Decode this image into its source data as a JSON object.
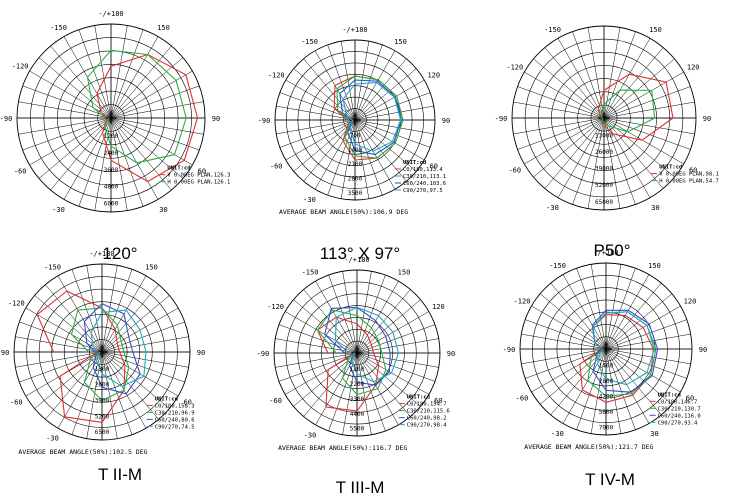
{
  "diagrams": [
    {
      "caption": "120°",
      "angle_labels": {
        "top": "-/+180",
        "r150": "150",
        "l150": "-150",
        "r120": "",
        "l120": "-120",
        "r90": "90",
        "l90": "-90",
        "r60": "60",
        "l60": "-60",
        "r30": "30",
        "l30": "-30",
        "zero": "0"
      },
      "radial_labels": [
        "1200",
        "2400",
        "3600",
        "4800",
        "6000"
      ],
      "unit_label": "UNIT:cd",
      "legend": [
        {
          "text": "V 0.00EG PLAN,126.3",
          "color": "#e03030"
        },
        {
          "text": "H 0.00EG PLAN,126.1",
          "color": "#27b040"
        }
      ],
      "beam_text": "",
      "curves": [
        {
          "color": "#e03030",
          "values": [
            0.02,
            0.06,
            0.18,
            0.45,
            0.78,
            0.9,
            0.92,
            0.92,
            0.78,
            0.55,
            0.3,
            0.12,
            0.04,
            0.02
          ]
        },
        {
          "color": "#27b040",
          "values": [
            0.02,
            0.05,
            0.12,
            0.3,
            0.55,
            0.78,
            0.8,
            0.8,
            0.78,
            0.72,
            0.5,
            0.22,
            0.06,
            0.02
          ]
        }
      ]
    },
    {
      "caption": "113° X 97°",
      "angle_labels": {
        "top": "-/+180",
        "r150": "150",
        "l150": "-150",
        "r120": "120",
        "l120": "-120",
        "r90": "90",
        "l90": "-90",
        "r60": "60",
        "l60": "-60",
        "r30": "",
        "l30": "-30",
        "zero": "0"
      },
      "radial_labels": [
        "700",
        "1400",
        "2100",
        "2800",
        "3500"
      ],
      "unit_label": "UNIT:cd",
      "legend": [
        {
          "text": "C0/180,113.4",
          "color": "#e03030"
        },
        {
          "text": "C30/210,113.1",
          "color": "#27b040"
        },
        {
          "text": "C60/240,103.6",
          "color": "#3050d0"
        },
        {
          "text": "C90/270,97.5",
          "color": "#20a8c0"
        }
      ],
      "beam_text": "AVERAGE BEAM ANGLE(50%):106.9 DEG",
      "curves": [
        {
          "color": "#e03030",
          "values": [
            0.02,
            0.1,
            0.3,
            0.5,
            0.55,
            0.58,
            0.6,
            0.6,
            0.58,
            0.55,
            0.5,
            0.3,
            0.1,
            0.02
          ]
        },
        {
          "color": "#27b040",
          "values": [
            0.02,
            0.08,
            0.25,
            0.45,
            0.55,
            0.58,
            0.6,
            0.6,
            0.58,
            0.55,
            0.45,
            0.25,
            0.08,
            0.02
          ]
        },
        {
          "color": "#3050d0",
          "values": [
            0.02,
            0.05,
            0.18,
            0.38,
            0.5,
            0.56,
            0.58,
            0.58,
            0.56,
            0.5,
            0.38,
            0.18,
            0.05,
            0.02
          ]
        },
        {
          "color": "#20a8c0",
          "values": [
            0.02,
            0.04,
            0.12,
            0.3,
            0.45,
            0.54,
            0.57,
            0.57,
            0.54,
            0.45,
            0.3,
            0.12,
            0.04,
            0.02
          ]
        }
      ]
    },
    {
      "caption": "P50°",
      "angle_labels": {
        "top": "",
        "r150": "150",
        "l150": "-150",
        "r120": "120",
        "l120": "-120",
        "r90": "90",
        "l90": "-90",
        "r60": "60",
        "l60": "-60",
        "r30": "30",
        "l30": "-30",
        "zero": ""
      },
      "radial_labels": [
        "13000",
        "26000",
        "39000",
        "52000",
        "65000"
      ],
      "unit_label": "UNIT:cd",
      "legend": [
        {
          "text": "V 0.00EG PLAN,98.1",
          "color": "#e03030"
        },
        {
          "text": "H 0.00EG PLAN,54.7",
          "color": "#27b040"
        }
      ],
      "beam_text": "",
      "curves": [
        {
          "color": "#e03030",
          "values": [
            0.01,
            0.02,
            0.04,
            0.08,
            0.2,
            0.48,
            0.75,
            0.78,
            0.55,
            0.3,
            0.12,
            0.05,
            0.02,
            0.01
          ]
        },
        {
          "color": "#27b040",
          "values": [
            0.01,
            0.02,
            0.03,
            0.05,
            0.1,
            0.3,
            0.55,
            0.6,
            0.35,
            0.15,
            0.06,
            0.03,
            0.02,
            0.01
          ]
        }
      ]
    },
    {
      "caption": "T II-M",
      "angle_labels": {
        "top": "-/+180",
        "r150": "150",
        "l150": "-150",
        "r120": "",
        "l120": "-120",
        "r90": "90",
        "l90": "-90",
        "r60": "60",
        "l60": "-60",
        "r30": "",
        "l30": "-30",
        "zero": "0"
      },
      "radial_labels": [
        "1300",
        "2600",
        "3900",
        "5200",
        "6500"
      ],
      "unit_label": "UNIT:cd",
      "legend": [
        {
          "text": "C0/180,158.3",
          "color": "#e03030"
        },
        {
          "text": "C30/210,96.9",
          "color": "#27b040"
        },
        {
          "text": "C60/240,80.6",
          "color": "#3050d0"
        },
        {
          "text": "C90/270,74.5",
          "color": "#20a8c0"
        }
      ],
      "beam_text": "AVERAGE BEAM ANGLE(50%):102.5 DEG",
      "curves": [
        {
          "color": "#e03030",
          "values": [
            0.05,
            0.55,
            0.85,
            0.8,
            0.5,
            0.3,
            0.2,
            0.2,
            0.3,
            0.5,
            0.8,
            0.85,
            0.55,
            0.05
          ]
        },
        {
          "color": "#27b040",
          "values": [
            0.03,
            0.15,
            0.4,
            0.55,
            0.5,
            0.35,
            0.25,
            0.25,
            0.35,
            0.5,
            0.55,
            0.4,
            0.15,
            0.03
          ]
        },
        {
          "color": "#3050d0",
          "values": [
            0.02,
            0.08,
            0.2,
            0.4,
            0.55,
            0.5,
            0.35,
            0.35,
            0.5,
            0.55,
            0.4,
            0.2,
            0.08,
            0.02
          ]
        },
        {
          "color": "#20a8c0",
          "values": [
            0.02,
            0.05,
            0.12,
            0.25,
            0.45,
            0.55,
            0.5,
            0.5,
            0.55,
            0.45,
            0.25,
            0.12,
            0.05,
            0.02
          ]
        }
      ]
    },
    {
      "caption": "T III-M",
      "angle_labels": {
        "top": "-/+180",
        "r150": "150",
        "l150": "-150",
        "r120": "120",
        "l120": "-120",
        "r90": "90",
        "l90": "-90",
        "r60": "60",
        "l60": "-60",
        "r30": "",
        "l30": "-30",
        "zero": "0"
      },
      "radial_labels": [
        "1100",
        "2200",
        "3300",
        "4400",
        "5500"
      ],
      "unit_label": "UNIT:cd",
      "legend": [
        {
          "text": "C0/180,154.7",
          "color": "#e03030"
        },
        {
          "text": "C30/210,115.6",
          "color": "#27b040"
        },
        {
          "text": "C60/240,98.2",
          "color": "#3050d0"
        },
        {
          "text": "C90/270,98.4",
          "color": "#20a8c0"
        }
      ],
      "beam_text": "AVERAGE BEAM ANGLE(50%):116.7 DEG",
      "curves": [
        {
          "color": "#e03030",
          "values": [
            0.03,
            0.4,
            0.75,
            0.7,
            0.45,
            0.3,
            0.2,
            0.2,
            0.25,
            0.35,
            0.5,
            0.55,
            0.35,
            0.05
          ]
        },
        {
          "color": "#27b040",
          "values": [
            0.02,
            0.12,
            0.35,
            0.5,
            0.5,
            0.4,
            0.3,
            0.3,
            0.35,
            0.45,
            0.6,
            0.55,
            0.25,
            0.03
          ]
        },
        {
          "color": "#3050d0",
          "values": [
            0.02,
            0.06,
            0.18,
            0.35,
            0.45,
            0.45,
            0.4,
            0.4,
            0.45,
            0.55,
            0.62,
            0.45,
            0.15,
            0.02
          ]
        },
        {
          "color": "#20a8c0",
          "values": [
            0.02,
            0.05,
            0.12,
            0.25,
            0.4,
            0.48,
            0.5,
            0.5,
            0.52,
            0.55,
            0.5,
            0.3,
            0.1,
            0.02
          ]
        }
      ]
    },
    {
      "caption": "T IV-M",
      "angle_labels": {
        "top": "-/+180",
        "r150": "150",
        "l150": "-150",
        "r120": "120",
        "l120": "-120",
        "r90": "90",
        "l90": "-90",
        "r60": "60",
        "l60": "-60",
        "r30": "30",
        "l30": "-30",
        "zero": "0"
      },
      "radial_labels": [
        "1400",
        "2800",
        "4200",
        "5600",
        "7000"
      ],
      "unit_label": "UNIT:cd",
      "legend": [
        {
          "text": "C0/180,146.7",
          "color": "#e03030"
        },
        {
          "text": "C30/210,130.7",
          "color": "#27b040"
        },
        {
          "text": "C60/240,116.0",
          "color": "#3050d0"
        },
        {
          "text": "C90/270,93.4",
          "color": "#20a8c0"
        }
      ],
      "beam_text": "AVERAGE BEAM ANGLE(50%):121.7 DEG",
      "curves": [
        {
          "color": "#e03030",
          "values": [
            0.05,
            0.35,
            0.55,
            0.62,
            0.62,
            0.6,
            0.55,
            0.5,
            0.45,
            0.4,
            0.3,
            0.15,
            0.05,
            0.02
          ]
        },
        {
          "color": "#27b040",
          "values": [
            0.03,
            0.2,
            0.42,
            0.55,
            0.6,
            0.6,
            0.58,
            0.55,
            0.5,
            0.42,
            0.3,
            0.15,
            0.05,
            0.02
          ]
        },
        {
          "color": "#3050d0",
          "values": [
            0.03,
            0.12,
            0.3,
            0.48,
            0.58,
            0.62,
            0.6,
            0.58,
            0.52,
            0.45,
            0.32,
            0.15,
            0.05,
            0.02
          ]
        },
        {
          "color": "#20a8c0",
          "values": [
            0.02,
            0.08,
            0.2,
            0.35,
            0.48,
            0.55,
            0.56,
            0.55,
            0.5,
            0.42,
            0.3,
            0.15,
            0.05,
            0.02
          ]
        }
      ]
    }
  ]
}
